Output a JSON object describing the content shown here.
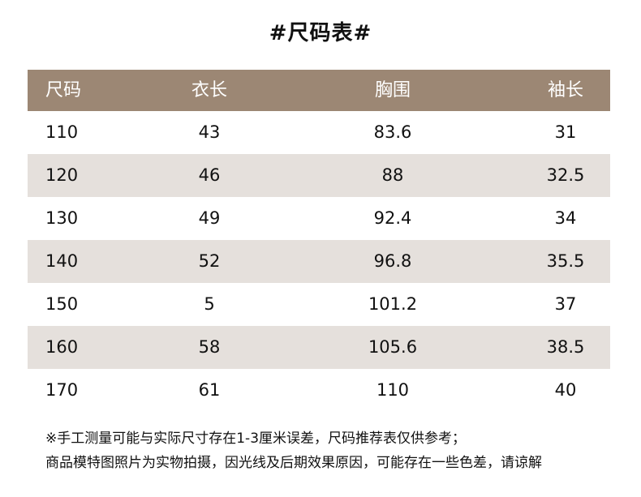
{
  "title": "#尺码表#",
  "table": {
    "columns": [
      "尺码",
      "衣长",
      "胸围",
      "袖长"
    ],
    "rows": [
      [
        "110",
        "43",
        "83.6",
        "31"
      ],
      [
        "120",
        "46",
        "88",
        "32.5"
      ],
      [
        "130",
        "49",
        "92.4",
        "34"
      ],
      [
        "140",
        "52",
        "96.8",
        "35.5"
      ],
      [
        "150",
        "5",
        "101.2",
        "37"
      ],
      [
        "160",
        "58",
        "105.6",
        "38.5"
      ],
      [
        "170",
        "61",
        "110",
        "40"
      ]
    ]
  },
  "notes": {
    "line1": "※手工测量可能与实际尺寸存在1-3厘米误差，尺码推荐表仅供参考；",
    "line2": "商品模特图照片为实物拍摄，因光线及后期效果原因，可能存在一些色差，请谅解"
  },
  "colors": {
    "header_bg": "#9c8774",
    "shaded_row_bg": "#e5e0dc"
  }
}
